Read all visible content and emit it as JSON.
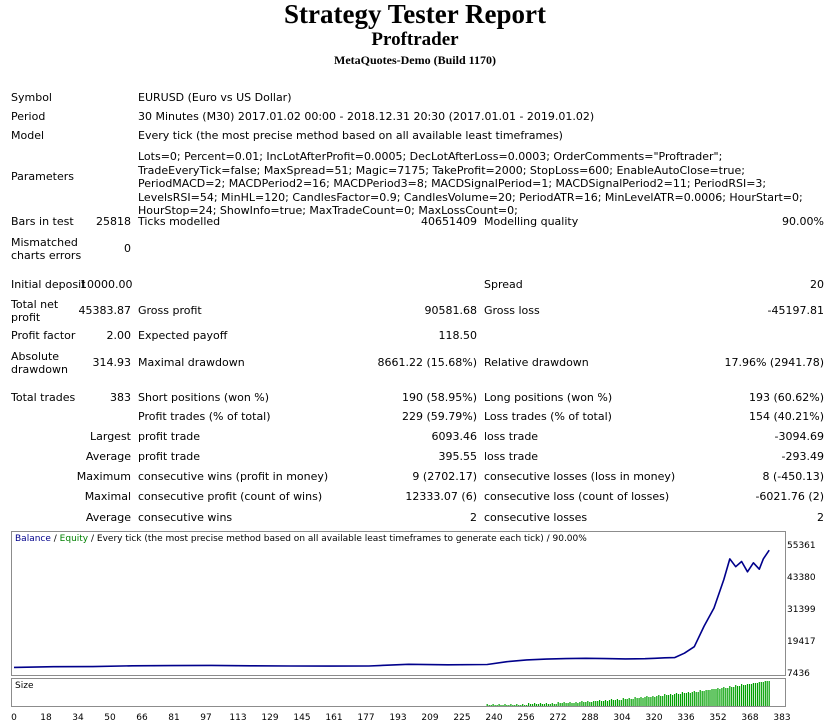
{
  "report": {
    "title": "Strategy Tester Report",
    "subtitle": "Proftrader",
    "build": "MetaQuotes-Demo (Build 1170)"
  },
  "info": {
    "symbol_label": "Symbol",
    "symbol_value": "EURUSD (Euro vs US Dollar)",
    "period_label": "Period",
    "period_value": "30 Minutes (M30) 2017.01.02 00:00 - 2018.12.31 20:30 (2017.01.01 - 2019.01.02)",
    "model_label": "Model",
    "model_value": "Every tick (the most precise method based on all available least timeframes)",
    "parameters_label": "Parameters",
    "parameters_value": "Lots=0; Percent=0.01; IncLotAfterProfit=0.0005; DecLotAfterLoss=0.0003; OrderComments=\"Proftrader\"; TradeEveryTick=false; MaxSpread=51; Magic=7175; TakeProfit=2000; StopLoss=600; EnableAutoClose=true; PeriodMACD=2; MACDPeriod2=16; MACDPeriod3=8; MACDSignalPeriod=1; MACDSignalPeriod2=11; PeriodRSI=3; LevelsRSI=54; MinHL=120; CandlesFactor=0.9; CandlesVolume=20; PeriodATR=16; MinLevelATR=0.0006; HourStart=0; HourStop=24; ShowInfo=true; MaxTradeCount=0; MaxLossCount=0;"
  },
  "stats": {
    "bars_label": "Bars in test",
    "bars_value": "25818",
    "ticks_label": "Ticks modelled",
    "ticks_value": "40651409",
    "quality_label": "Modelling quality",
    "quality_value": "90.00%",
    "mismatch_label": "Mismatched charts errors",
    "mismatch_value": "0",
    "deposit_label": "Initial deposit",
    "deposit_value": "10000.00",
    "spread_label": "Spread",
    "spread_value": "20",
    "netprofit_label": "Total net profit",
    "netprofit_value": "45383.87",
    "grossprofit_label": "Gross profit",
    "grossprofit_value": "90581.68",
    "grossloss_label": "Gross loss",
    "grossloss_value": "-45197.81",
    "pf_label": "Profit factor",
    "pf_value": "2.00",
    "ep_label": "Expected payoff",
    "ep_value": "118.50",
    "absdd_label": "Absolute drawdown",
    "absdd_value": "314.93",
    "maxdd_label": "Maximal drawdown",
    "maxdd_value": "8661.22 (15.68%)",
    "reldd_label": "Relative drawdown",
    "reldd_value": "17.96% (2941.78)",
    "trades_label": "Total trades",
    "trades_value": "383",
    "short_label": "Short positions (won %)",
    "short_value": "190 (58.95%)",
    "long_label": "Long positions (won %)",
    "long_value": "193 (60.62%)",
    "pt_label": "Profit trades (% of total)",
    "pt_value": "229 (59.79%)",
    "lt_label": "Loss trades (% of total)",
    "lt_value": "154 (40.21%)",
    "largest_label": "Largest",
    "largest_pt_label": "profit trade",
    "largest_pt_value": "6093.46",
    "largest_lt_label": "loss trade",
    "largest_lt_value": "-3094.69",
    "average_label": "Average",
    "avg_pt_label": "profit trade",
    "avg_pt_value": "395.55",
    "avg_lt_label": "loss trade",
    "avg_lt_value": "-293.49",
    "maximum_label": "Maximum",
    "max_cw_label": "consecutive wins (profit in money)",
    "max_cw_value": "9 (2702.17)",
    "max_cl_label": "consecutive losses (loss in money)",
    "max_cl_value": "8 (-450.13)",
    "maximal_label": "Maximal",
    "maximal_cp_label": "consecutive profit (count of wins)",
    "maximal_cp_value": "12333.07 (6)",
    "maximal_cl_label": "consecutive loss (count of losses)",
    "maximal_cl_value": "-6021.76 (2)",
    "average2_label": "Average",
    "avg_cw_label": "consecutive wins",
    "avg_cw_value": "2",
    "avg_cl_label": "consecutive losses",
    "avg_cl_value": "2"
  },
  "chart_data": {
    "type": "line",
    "legend": {
      "balance": "Balance",
      "sep": " / ",
      "equity": "Equity",
      "rest": " / Every tick (the most precise method based on all available least timeframes to generate each tick) / 90.00%"
    },
    "colors": {
      "balance": "#00008b",
      "equity": "#008000",
      "size": "#00a000",
      "axis": "#8c8c8c"
    },
    "ylim": [
      7436,
      57000
    ],
    "yticks": [
      "55361",
      "43380",
      "31399",
      "19417",
      "7436"
    ],
    "xlim": [
      0,
      390
    ],
    "xticks": [
      "0",
      "18",
      "34",
      "50",
      "66",
      "81",
      "97",
      "113",
      "129",
      "145",
      "161",
      "177",
      "193",
      "209",
      "225",
      "240",
      "256",
      "272",
      "288",
      "304",
      "320",
      "336",
      "352",
      "368",
      "383"
    ],
    "series": [
      {
        "key": "balance",
        "x": [
          0,
          20,
          40,
          60,
          80,
          100,
          120,
          140,
          160,
          180,
          200,
          220,
          240,
          250,
          260,
          270,
          280,
          290,
          300,
          310,
          320,
          325,
          330,
          335,
          340,
          345,
          350,
          355,
          360,
          363,
          366,
          369,
          372,
          375,
          378,
          380,
          383
        ],
        "values": [
          10000,
          10250,
          10300,
          10600,
          10700,
          10750,
          10600,
          10550,
          10500,
          10550,
          11200,
          11000,
          11100,
          12200,
          12900,
          13200,
          13400,
          13500,
          13400,
          13300,
          13350,
          13500,
          13700,
          13800,
          15500,
          18000,
          26000,
          33000,
          44000,
          52000,
          49000,
          51000,
          47000,
          50500,
          48000,
          52000,
          55361
        ]
      }
    ],
    "size_label": "Size"
  }
}
